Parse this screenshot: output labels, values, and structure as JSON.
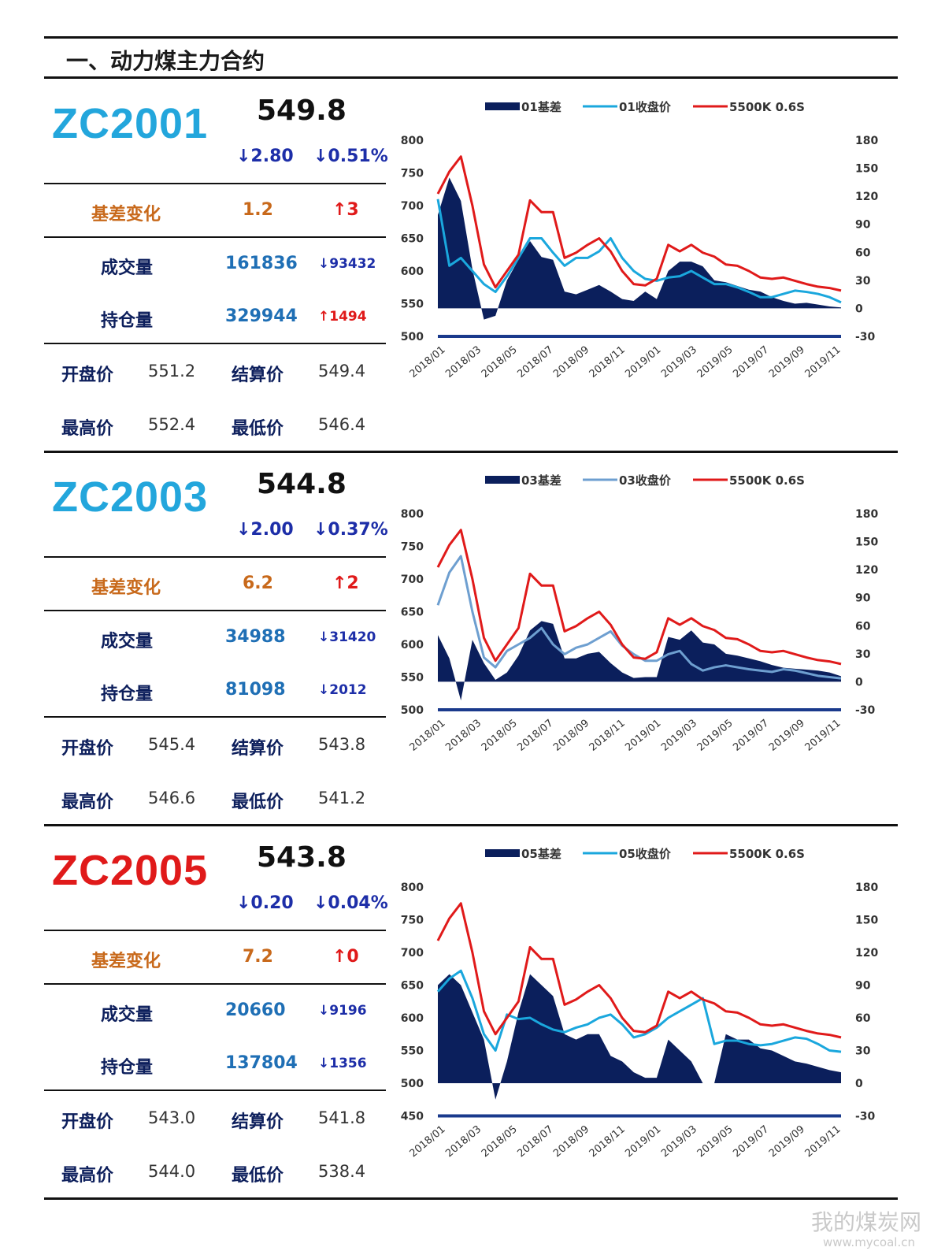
{
  "section_title": "一、动力煤主力合约",
  "watermark": {
    "name": "我的煤炭网",
    "url": "www.mycoal.cn"
  },
  "colors": {
    "basis_fill": "#0b1f5c",
    "close_line_01": "#1aa7dd",
    "close_line_03": "#6e9fd0",
    "close_line_05": "#1aa7dd",
    "spot_line": "#e01a1a",
    "code_blue": "#23a6dc",
    "code_red": "#e01a1a"
  },
  "panels": [
    {
      "code": "ZC2001",
      "code_color": "#23a6dc",
      "price": "549.8",
      "change": "↓2.80",
      "change_pct": "↓0.51%",
      "basis_label": "基差变化",
      "basis_value": "1.2",
      "basis_change": "↑3",
      "volume_label": "成交量",
      "volume": "161836",
      "volume_change": "↓93432",
      "oi_label": "持仓量",
      "oi": "329944",
      "oi_change": "↑1494",
      "open_label": "开盘价",
      "open": "551.2",
      "settle_label": "结算价",
      "settle": "549.4",
      "high_label": "最高价",
      "high": "552.4",
      "low_label": "最低价",
      "low": "546.4",
      "chart_data": {
        "type": "line",
        "legend": [
          "01基差",
          "01收盘价",
          "5500K 0.6S"
        ],
        "x_ticks": [
          "2018/01",
          "2018/03",
          "2018/05",
          "2018/07",
          "2018/09",
          "2018/11",
          "2019/01",
          "2019/03",
          "2019/05",
          "2019/07",
          "2019/09",
          "2019/11"
        ],
        "y_left": [
          500,
          550,
          600,
          650,
          700,
          750,
          800
        ],
        "y_right": [
          -30,
          0,
          30,
          60,
          90,
          120,
          150,
          180
        ],
        "series": [
          {
            "name": "5500K 0.6S",
            "axis": "left",
            "values": [
              718,
              752,
              775,
              700,
              610,
              575,
              600,
              625,
              708,
              690,
              690,
              620,
              628,
              640,
              650,
              630,
              600,
              580,
              578,
              588,
              640,
              630,
              640,
              628,
              622,
              610,
              608,
              600,
              590,
              588,
              590,
              585,
              580,
              576,
              574,
              570
            ]
          },
          {
            "name": "01收盘价",
            "axis": "left",
            "values": [
              710,
              608,
              620,
              600,
              580,
              568,
              592,
              620,
              650,
              650,
              628,
              608,
              620,
              620,
              630,
              650,
              620,
              600,
              588,
              585,
              590,
              592,
              600,
              590,
              580,
              580,
              575,
              568,
              560,
              560,
              565,
              570,
              568,
              565,
              560,
              552
            ]
          },
          {
            "name": "01基差",
            "axis": "right",
            "values": [
              100,
              140,
              115,
              42,
              -12,
              -8,
              30,
              52,
              72,
              55,
              52,
              18,
              15,
              20,
              25,
              18,
              10,
              8,
              18,
              10,
              40,
              50,
              50,
              45,
              30,
              28,
              24,
              20,
              18,
              12,
              8,
              5,
              6,
              4,
              2,
              1
            ]
          }
        ]
      }
    },
    {
      "code": "ZC2003",
      "code_color": "#23a6dc",
      "price": "544.8",
      "change": "↓2.00",
      "change_pct": "↓0.37%",
      "basis_label": "基差变化",
      "basis_value": "6.2",
      "basis_change": "↑2",
      "volume_label": "成交量",
      "volume": "34988",
      "volume_change": "↓31420",
      "oi_label": "持仓量",
      "oi": "81098",
      "oi_change": "↓2012",
      "open_label": "开盘价",
      "open": "545.4",
      "settle_label": "结算价",
      "settle": "543.8",
      "high_label": "最高价",
      "high": "546.6",
      "low_label": "最低价",
      "low": "541.2",
      "chart_data": {
        "type": "line",
        "legend": [
          "03基差",
          "03收盘价",
          "5500K 0.6S"
        ],
        "x_ticks": [
          "2018/01",
          "2018/03",
          "2018/05",
          "2018/07",
          "2018/09",
          "2018/11",
          "2019/01",
          "2019/03",
          "2019/05",
          "2019/07",
          "2019/09",
          "2019/11"
        ],
        "y_left": [
          500,
          550,
          600,
          650,
          700,
          750,
          800
        ],
        "y_right": [
          -30,
          0,
          30,
          60,
          90,
          120,
          150,
          180
        ],
        "series": [
          {
            "name": "5500K 0.6S",
            "axis": "left",
            "values": [
              718,
              752,
              775,
              700,
              610,
              575,
              600,
              625,
              708,
              690,
              690,
              620,
              628,
              640,
              650,
              630,
              600,
              580,
              578,
              588,
              640,
              630,
              640,
              628,
              622,
              610,
              608,
              600,
              590,
              588,
              590,
              585,
              580,
              576,
              574,
              570
            ]
          },
          {
            "name": "03收盘价",
            "axis": "left",
            "values": [
              660,
              710,
              735,
              650,
              580,
              565,
              590,
              600,
              610,
              625,
              600,
              585,
              595,
              600,
              610,
              620,
              598,
              585,
              575,
              575,
              585,
              590,
              570,
              560,
              565,
              568,
              565,
              562,
              560,
              558,
              562,
              560,
              556,
              552,
              550,
              548
            ]
          },
          {
            "name": "03基差",
            "axis": "right",
            "values": [
              50,
              25,
              -20,
              45,
              20,
              2,
              10,
              28,
              55,
              65,
              62,
              25,
              25,
              30,
              32,
              20,
              10,
              4,
              5,
              5,
              48,
              45,
              55,
              42,
              40,
              30,
              28,
              25,
              22,
              18,
              15,
              14,
              13,
              12,
              10,
              6
            ]
          }
        ]
      }
    },
    {
      "code": "ZC2005",
      "code_color": "#e01a1a",
      "price": "543.8",
      "change": "↓0.20",
      "change_pct": "↓0.04%",
      "basis_label": "基差变化",
      "basis_value": "7.2",
      "basis_change": "↑0",
      "volume_label": "成交量",
      "volume": "20660",
      "volume_change": "↓9196",
      "oi_label": "持仓量",
      "oi": "137804",
      "oi_change": "↓1356",
      "open_label": "开盘价",
      "open": "543.0",
      "settle_label": "结算价",
      "settle": "541.8",
      "high_label": "最高价",
      "high": "544.0",
      "low_label": "最低价",
      "low": "538.4",
      "chart_data": {
        "type": "line",
        "legend": [
          "05基差",
          "05收盘价",
          "5500K 0.6S"
        ],
        "x_ticks": [
          "2018/01",
          "2018/03",
          "2018/05",
          "2018/07",
          "2018/09",
          "2018/11",
          "2019/01",
          "2019/03",
          "2019/05",
          "2019/07",
          "2019/09",
          "2019/11"
        ],
        "y_left": [
          450,
          500,
          550,
          600,
          650,
          700,
          750,
          800
        ],
        "y_right": [
          -30,
          0,
          30,
          60,
          90,
          120,
          150,
          180
        ],
        "series": [
          {
            "name": "5500K 0.6S",
            "axis": "left",
            "values": [
              718,
              752,
              775,
              700,
              610,
              575,
              600,
              625,
              708,
              690,
              690,
              620,
              628,
              640,
              650,
              630,
              600,
              580,
              578,
              588,
              640,
              630,
              640,
              628,
              622,
              610,
              608,
              600,
              590,
              588,
              590,
              585,
              580,
              576,
              574,
              570
            ]
          },
          {
            "name": "05收盘价",
            "axis": "left",
            "values": [
              640,
              660,
              672,
              630,
              575,
              550,
              605,
              598,
              600,
              590,
              582,
              578,
              585,
              590,
              600,
              605,
              590,
              570,
              575,
              585,
              600,
              610,
              620,
              630,
              560,
              565,
              565,
              560,
              558,
              560,
              565,
              570,
              568,
              560,
              550,
              548
            ]
          },
          {
            "name": "05基差",
            "axis": "right",
            "values": [
              90,
              100,
              90,
              65,
              40,
              -15,
              20,
              65,
              100,
              90,
              80,
              45,
              40,
              45,
              45,
              25,
              20,
              10,
              5,
              5,
              40,
              30,
              20,
              0,
              0,
              45,
              40,
              40,
              32,
              30,
              25,
              20,
              18,
              15,
              12,
              10
            ]
          }
        ]
      }
    }
  ]
}
